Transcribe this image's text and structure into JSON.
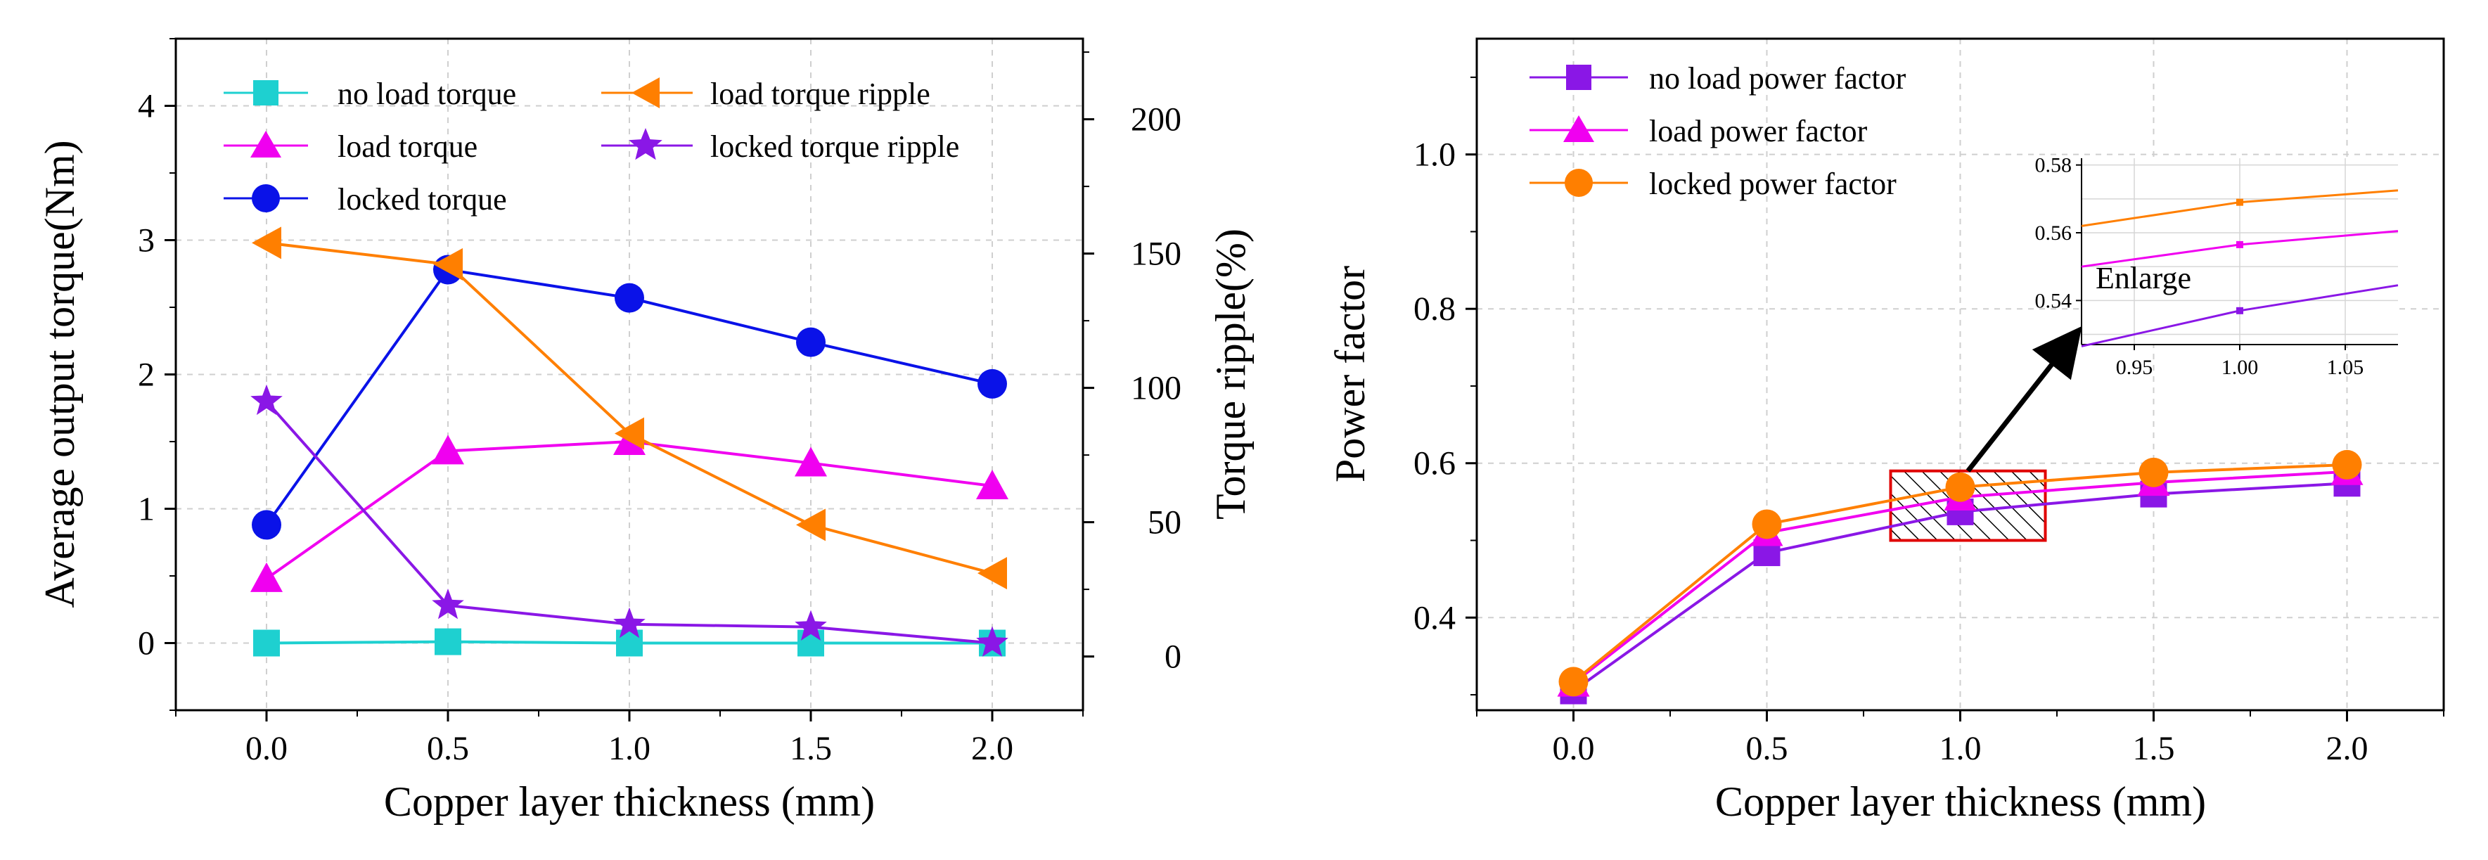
{
  "chart_data": [
    {
      "type": "line",
      "title": "",
      "xlabel": "Copper layer thickness (mm)",
      "ylabel": "Average output torque(Nm)",
      "y2label": "Torque ripple(%)",
      "x": [
        0.0,
        0.5,
        1.0,
        1.5,
        2.0
      ],
      "xticks": [
        "0.0",
        "0.5",
        "1.0",
        "1.5",
        "2.0"
      ],
      "xlim": [
        -0.25,
        2.25
      ],
      "ylim": [
        -0.5,
        4.5
      ],
      "yticks": [
        "0",
        "1",
        "2",
        "3",
        "4"
      ],
      "y2lim": [
        -20,
        230
      ],
      "y2ticks": [
        "0",
        "50",
        "100",
        "150",
        "200"
      ],
      "grid": true,
      "legend_position": "top-left",
      "series": [
        {
          "name": "no load torque",
          "axis": "left",
          "marker": "square",
          "color": "#1ed0d0",
          "values": [
            0.0,
            0.01,
            0.0,
            0.0,
            0.0
          ]
        },
        {
          "name": "load torque",
          "axis": "left",
          "marker": "triangle",
          "color": "#f000f0",
          "values": [
            0.48,
            1.43,
            1.5,
            1.34,
            1.17
          ]
        },
        {
          "name": "locked torque",
          "axis": "left",
          "marker": "circle",
          "color": "#0a12e8",
          "values": [
            0.88,
            2.78,
            2.57,
            2.24,
            1.93
          ]
        },
        {
          "name": "load torque ripple",
          "axis": "right",
          "marker": "left-triangle",
          "color": "#ff7f00",
          "values": [
            154,
            146,
            83,
            49,
            31
          ]
        },
        {
          "name": "locked torque ripple",
          "axis": "right",
          "marker": "star",
          "color": "#8a17e6",
          "values": [
            95,
            19,
            12,
            11,
            5
          ]
        }
      ]
    },
    {
      "type": "line",
      "title": "",
      "xlabel": "Copper layer thickness (mm)",
      "ylabel": "Power factor",
      "x": [
        0.0,
        0.5,
        1.0,
        1.5,
        2.0
      ],
      "xticks": [
        "0.0",
        "0.5",
        "1.0",
        "1.5",
        "2.0"
      ],
      "xlim": [
        -0.25,
        2.25
      ],
      "ylim": [
        0.28,
        1.15
      ],
      "yticks": [
        "0.4",
        "0.6",
        "0.8",
        "1.0"
      ],
      "grid": true,
      "legend_position": "top-left",
      "series": [
        {
          "name": "no load power factor",
          "marker": "square",
          "color": "#8a17e6",
          "values": [
            0.305,
            0.484,
            0.537,
            0.56,
            0.574
          ]
        },
        {
          "name": "load power factor",
          "marker": "triangle",
          "color": "#f000f0",
          "values": [
            0.315,
            0.51,
            0.556,
            0.575,
            0.589
          ]
        },
        {
          "name": "locked power factor",
          "marker": "circle",
          "color": "#ff7f00",
          "values": [
            0.317,
            0.521,
            0.569,
            0.588,
            0.598
          ]
        }
      ],
      "highlight_box": {
        "x_range": [
          0.82,
          1.22
        ],
        "y_range": [
          0.5,
          0.59
        ],
        "color": "#e00000"
      },
      "inset": {
        "label": "Enlarge",
        "xlim": [
          0.925,
          1.075
        ],
        "ylim": [
          0.527,
          0.582
        ],
        "xticks": [
          "0.95",
          "1.00",
          "1.05"
        ],
        "yticks": [
          "0.54",
          "0.56",
          "0.58"
        ],
        "series": [
          {
            "color": "#8a17e6",
            "points": [
              [
                0.925,
                0.5265
              ],
              [
                1.0,
                0.537
              ],
              [
                1.075,
                0.5445
              ]
            ]
          },
          {
            "color": "#f000f0",
            "points": [
              [
                0.925,
                0.55
              ],
              [
                1.0,
                0.5565
              ],
              [
                1.075,
                0.5605
              ]
            ]
          },
          {
            "color": "#ff7f00",
            "points": [
              [
                0.925,
                0.562
              ],
              [
                1.0,
                0.569
              ],
              [
                1.075,
                0.5725
              ]
            ]
          }
        ]
      }
    }
  ]
}
